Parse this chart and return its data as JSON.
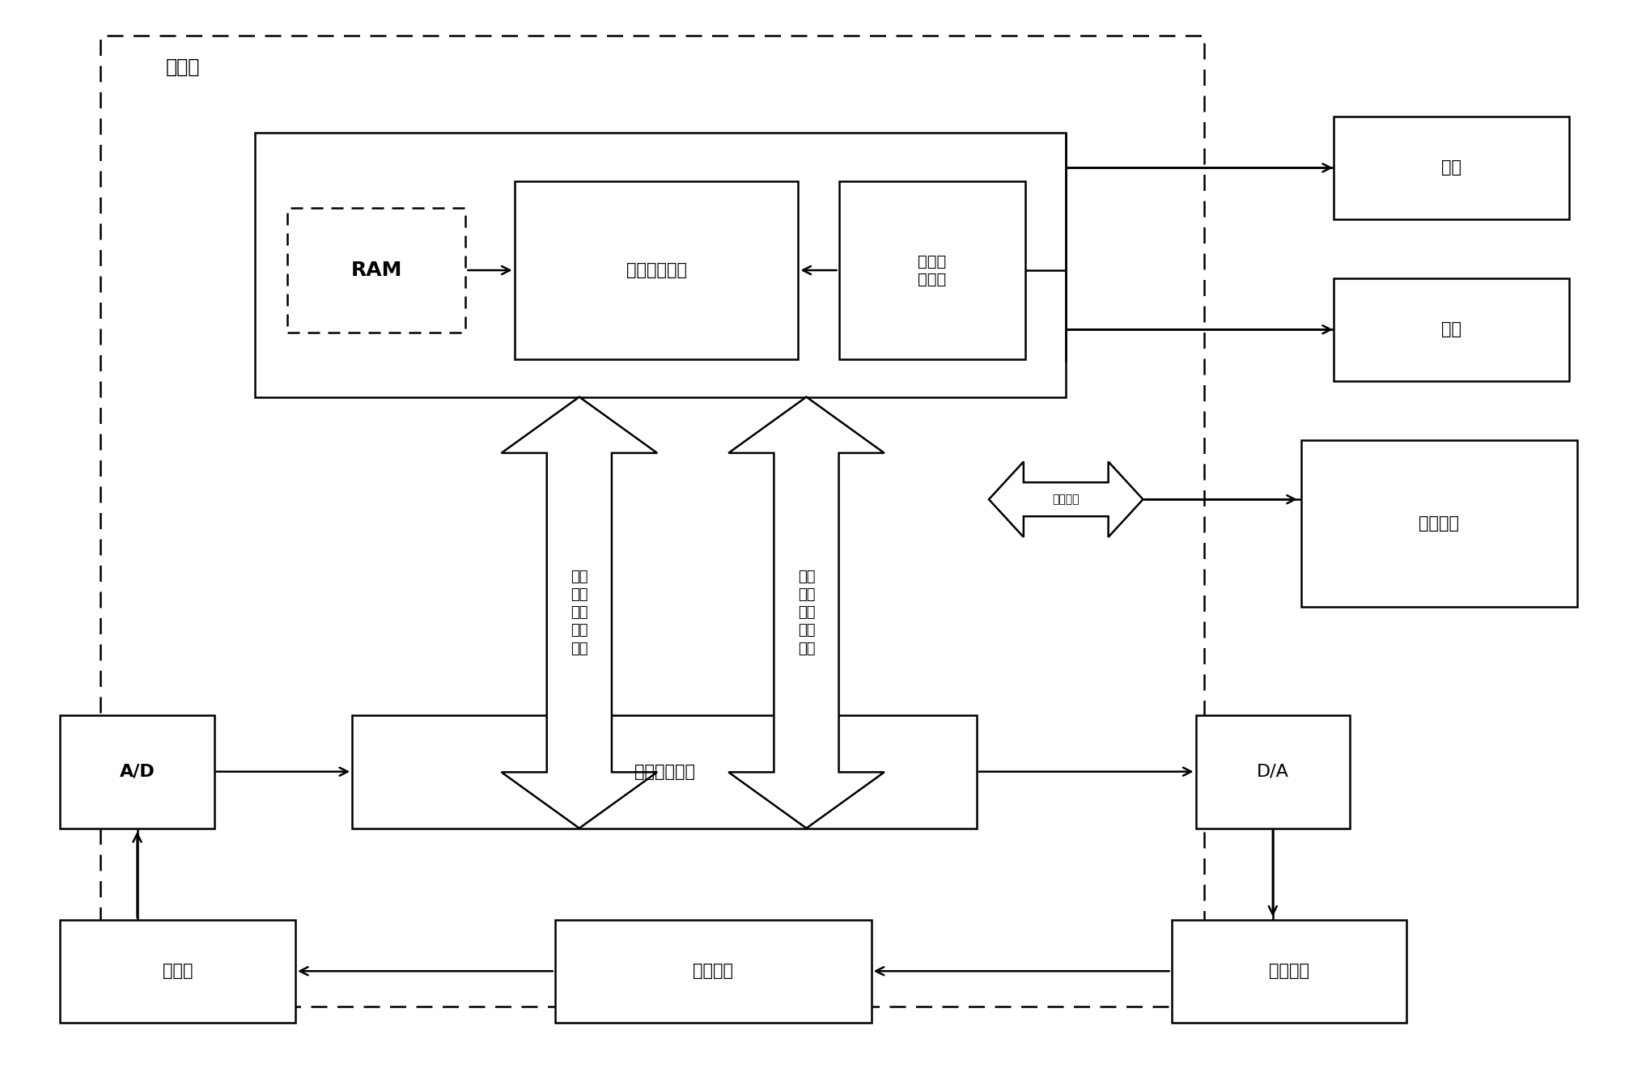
{
  "bg_color": "#ffffff",
  "lc": "#000000",
  "fig_w": 20.13,
  "fig_h": 13.41,
  "dpi": 100,
  "label_gongkongji": "工控机",
  "label_RAM": "RAM",
  "label_offline_ctrl": "离线控制程序",
  "label_perf": "综合性\n能指标",
  "label_online_ctrl": "在线控制程序",
  "label_AD": "A/D",
  "label_DA": "D/A",
  "label_transmitter": "变送器",
  "label_controlled": "被控过程",
  "label_actuator": "执行机构",
  "label_print": "打印",
  "label_alarm": "报警",
  "label_config": "组态界面",
  "label_jiaohujiekou": "交互接口",
  "label_online_channel": "在线\n微调\n参数\n传输\n通道",
  "label_offline_channel": "离线\n调节\n参数\n传输\n通道"
}
